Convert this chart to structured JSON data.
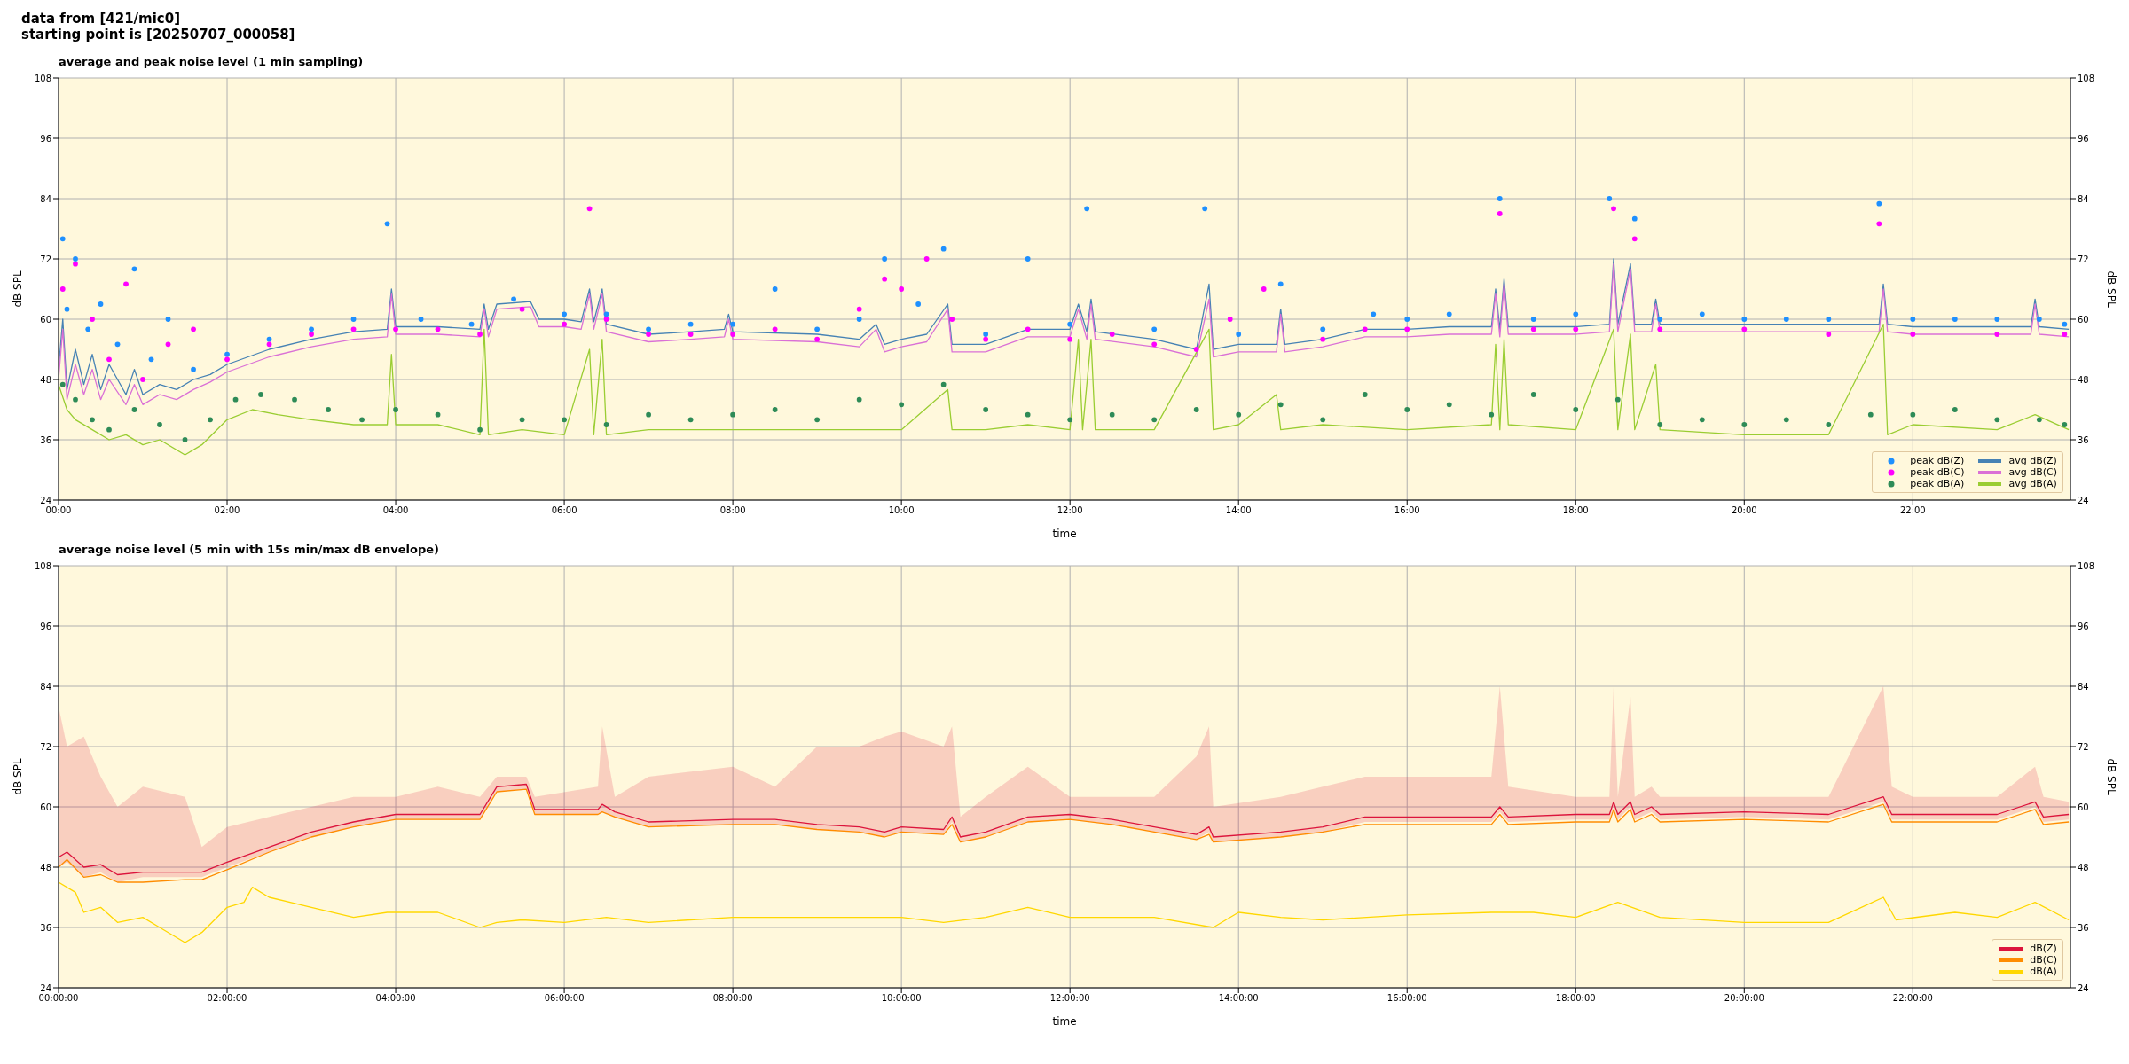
{
  "chart_data": [
    {
      "type": "line",
      "title": "average and peak noise level (1 min sampling)",
      "annotations": [
        "data from [421/mic0]",
        "starting point is [20250707_000058]"
      ],
      "xlabel": "time",
      "ylabel": "dB SPL",
      "y2label": "dB SPL",
      "xlim": [
        0,
        23.87
      ],
      "ylim": [
        24,
        108
      ],
      "y2lim": [
        24,
        108
      ],
      "xticks": [
        {
          "value": 0,
          "label": "00:00"
        },
        {
          "value": 2,
          "label": "02:00"
        },
        {
          "value": 4,
          "label": "04:00"
        },
        {
          "value": 6,
          "label": "06:00"
        },
        {
          "value": 8,
          "label": "08:00"
        },
        {
          "value": 10,
          "label": "10:00"
        },
        {
          "value": 12,
          "label": "12:00"
        },
        {
          "value": 14,
          "label": "14:00"
        },
        {
          "value": 16,
          "label": "16:00"
        },
        {
          "value": 18,
          "label": "18:00"
        },
        {
          "value": 20,
          "label": "20:00"
        },
        {
          "value": 22,
          "label": "22:00"
        }
      ],
      "yticks": [
        24,
        36,
        48,
        60,
        72,
        84,
        96,
        108
      ],
      "y2ticks": [
        24,
        36,
        48,
        60,
        72,
        84,
        96,
        108
      ],
      "grid": true,
      "legend": "bottom right",
      "line_style": "solid",
      "series": [
        {
          "name": "peak dB(Z)",
          "type": "scatter",
          "marker": "circle",
          "color": "#1e90ff",
          "x": [
            0.05,
            0.1,
            0.2,
            0.35,
            0.5,
            0.7,
            0.9,
            1.1,
            1.3,
            1.6,
            2.0,
            2.5,
            3.0,
            3.5,
            3.9,
            4.3,
            4.9,
            5.4,
            6.0,
            6.5,
            7.0,
            7.5,
            8.0,
            8.5,
            9.0,
            9.5,
            9.8,
            10.2,
            10.5,
            11.0,
            11.5,
            12.0,
            12.2,
            13.0,
            13.6,
            14.0,
            14.5,
            15.0,
            15.6,
            16.0,
            16.5,
            17.1,
            17.5,
            18.0,
            18.4,
            18.7,
            19.0,
            19.5,
            20.0,
            20.5,
            21.0,
            21.6,
            22.0,
            22.5,
            23.0,
            23.5,
            23.8
          ],
          "values": [
            76,
            62,
            72,
            58,
            63,
            55,
            70,
            52,
            60,
            50,
            53,
            56,
            58,
            60,
            79,
            60,
            59,
            64,
            61,
            61,
            58,
            59,
            59,
            66,
            58,
            60,
            72,
            63,
            74,
            57,
            72,
            59,
            82,
            58,
            82,
            57,
            67,
            58,
            61,
            60,
            61,
            84,
            60,
            61,
            84,
            80,
            60,
            61,
            60,
            60,
            60,
            83,
            60,
            60,
            60,
            60,
            59
          ]
        },
        {
          "name": "peak dB(C)",
          "type": "scatter",
          "marker": "circle",
          "color": "#ff00ff",
          "x": [
            0.05,
            0.2,
            0.4,
            0.6,
            0.8,
            1.0,
            1.3,
            1.6,
            2.0,
            2.5,
            3.0,
            3.5,
            4.0,
            4.5,
            5.0,
            5.5,
            6.0,
            6.3,
            6.5,
            7.0,
            7.5,
            8.0,
            8.5,
            9.0,
            9.5,
            9.8,
            10.0,
            10.3,
            10.6,
            11.0,
            11.5,
            12.0,
            12.5,
            13.0,
            13.5,
            13.9,
            14.3,
            15.0,
            15.5,
            16.0,
            17.1,
            17.5,
            18.0,
            18.45,
            18.7,
            19.0,
            20.0,
            21.0,
            21.6,
            22.0,
            23.0,
            23.8
          ],
          "values": [
            66,
            71,
            60,
            52,
            67,
            48,
            55,
            58,
            52,
            55,
            57,
            58,
            58,
            58,
            57,
            62,
            59,
            82,
            60,
            57,
            57,
            57,
            58,
            56,
            62,
            68,
            66,
            72,
            60,
            56,
            58,
            56,
            57,
            55,
            54,
            60,
            66,
            56,
            58,
            58,
            81,
            58,
            58,
            82,
            76,
            58,
            58,
            57,
            79,
            57,
            57,
            57
          ]
        },
        {
          "name": "peak dB(A)",
          "type": "scatter",
          "marker": "circle",
          "color": "#2e8b57",
          "x": [
            0.05,
            0.2,
            0.4,
            0.6,
            0.9,
            1.2,
            1.5,
            1.8,
            2.1,
            2.4,
            2.8,
            3.2,
            3.6,
            4.0,
            4.5,
            5.0,
            5.5,
            6.0,
            6.5,
            7.0,
            7.5,
            8.0,
            8.5,
            9.0,
            9.5,
            10.0,
            10.5,
            11.0,
            11.5,
            12.0,
            12.5,
            13.0,
            13.5,
            14.0,
            14.5,
            15.0,
            15.5,
            16.0,
            16.5,
            17.0,
            17.5,
            18.0,
            18.5,
            19.0,
            19.5,
            20.0,
            20.5,
            21.0,
            21.5,
            22.0,
            22.5,
            23.0,
            23.5,
            23.8
          ],
          "values": [
            47,
            44,
            40,
            38,
            42,
            39,
            36,
            40,
            44,
            45,
            44,
            42,
            40,
            42,
            41,
            38,
            40,
            40,
            39,
            41,
            40,
            41,
            42,
            40,
            44,
            43,
            47,
            42,
            41,
            40,
            41,
            40,
            42,
            41,
            43,
            40,
            45,
            42,
            43,
            41,
            45,
            42,
            44,
            39,
            40,
            39,
            40,
            39,
            41,
            41,
            42,
            40,
            40,
            39
          ]
        },
        {
          "name": "avg dB(Z)",
          "type": "line",
          "marker": "none",
          "color": "#4682b4",
          "x": [
            0,
            0.05,
            0.1,
            0.2,
            0.3,
            0.4,
            0.5,
            0.6,
            0.8,
            0.9,
            1.0,
            1.2,
            1.4,
            1.6,
            1.8,
            2.0,
            2.5,
            3.0,
            3.5,
            3.9,
            3.95,
            4.0,
            4.5,
            5.0,
            5.05,
            5.1,
            5.2,
            5.6,
            5.7,
            6.0,
            6.2,
            6.3,
            6.35,
            6.45,
            6.5,
            7.0,
            7.5,
            7.9,
            7.95,
            8.0,
            9.0,
            9.5,
            9.7,
            9.8,
            10.0,
            10.3,
            10.55,
            10.6,
            11.0,
            11.5,
            12.0,
            12.1,
            12.2,
            12.25,
            12.3,
            13.0,
            13.5,
            13.65,
            13.7,
            14.0,
            14.45,
            14.5,
            14.55,
            15.0,
            15.5,
            16.0,
            16.5,
            17.0,
            17.05,
            17.1,
            17.15,
            17.2,
            18.0,
            18.4,
            18.45,
            18.5,
            18.65,
            18.7,
            18.9,
            18.95,
            19.0,
            20.0,
            21.0,
            21.6,
            21.65,
            21.7,
            22.0,
            23.0,
            23.4,
            23.45,
            23.5,
            23.85
          ],
          "values": [
            50,
            60,
            46,
            54,
            47,
            53,
            46,
            51,
            45,
            50,
            45,
            47,
            46,
            48,
            49,
            51,
            54,
            56,
            57.5,
            58,
            66,
            58.5,
            58.5,
            58,
            63,
            58,
            63,
            63.5,
            60,
            60,
            59.5,
            66,
            59.5,
            66,
            59,
            57,
            57.5,
            58,
            61,
            57.5,
            57,
            56,
            59,
            55,
            56,
            57,
            63,
            55,
            55,
            58,
            58,
            63,
            57.5,
            64,
            57.5,
            56,
            54,
            67,
            54,
            55,
            55,
            62,
            55,
            56,
            58,
            58,
            58.5,
            58.5,
            66,
            58,
            68,
            58.5,
            58.5,
            59,
            72,
            59,
            71,
            59,
            59,
            64,
            59,
            59,
            59,
            59,
            67,
            59,
            58.5,
            58.5,
            58.5,
            64,
            58.5,
            58
          ]
        },
        {
          "name": "avg dB(C)",
          "type": "line",
          "marker": "none",
          "color": "#da70d6",
          "x": [
            0,
            0.05,
            0.1,
            0.2,
            0.3,
            0.4,
            0.5,
            0.6,
            0.8,
            0.9,
            1.0,
            1.2,
            1.4,
            1.6,
            1.8,
            2.0,
            2.5,
            3.0,
            3.5,
            3.9,
            3.95,
            4.0,
            4.5,
            5.0,
            5.05,
            5.1,
            5.2,
            5.6,
            5.7,
            6.0,
            6.2,
            6.3,
            6.35,
            6.45,
            6.5,
            7.0,
            7.5,
            7.9,
            7.95,
            8.0,
            9.0,
            9.5,
            9.7,
            9.8,
            10.0,
            10.3,
            10.55,
            10.6,
            11.0,
            11.5,
            12.0,
            12.1,
            12.2,
            12.25,
            12.3,
            13.0,
            13.5,
            13.65,
            13.7,
            14.0,
            14.45,
            14.5,
            14.55,
            15.0,
            15.5,
            16.0,
            16.5,
            17.0,
            17.05,
            17.1,
            17.15,
            17.2,
            18.0,
            18.4,
            18.45,
            18.5,
            18.65,
            18.7,
            18.9,
            18.95,
            19.0,
            20.0,
            21.0,
            21.6,
            21.65,
            21.7,
            22.0,
            23.0,
            23.4,
            23.45,
            23.5,
            23.85
          ],
          "values": [
            48,
            58,
            44,
            51,
            45,
            50,
            44,
            48,
            43,
            47,
            43,
            45,
            44,
            46,
            47.5,
            49.5,
            52.5,
            54.5,
            56,
            56.5,
            65,
            57,
            57,
            56.5,
            62,
            56.5,
            62,
            62.5,
            58.5,
            58.5,
            58,
            65,
            58,
            65,
            57.5,
            55.5,
            56,
            56.5,
            60,
            56,
            55.5,
            54.5,
            58,
            53.5,
            54.5,
            55.5,
            62,
            53.5,
            53.5,
            56.5,
            56.5,
            62,
            56,
            63,
            56,
            54.5,
            52.5,
            64,
            52.5,
            53.5,
            53.5,
            61,
            53.5,
            54.5,
            56.5,
            56.5,
            57,
            57,
            65,
            56.5,
            67,
            57,
            57,
            57.5,
            71,
            57.5,
            70,
            57.5,
            57.5,
            63,
            57.5,
            57.5,
            57.5,
            57.5,
            66,
            57.5,
            57,
            57,
            57,
            63,
            57,
            56.5
          ]
        },
        {
          "name": "avg dB(A)",
          "type": "line",
          "marker": "none",
          "color": "#9acd32",
          "x": [
            0,
            0.1,
            0.2,
            0.4,
            0.6,
            0.8,
            1.0,
            1.2,
            1.5,
            1.7,
            2.0,
            2.3,
            2.6,
            3.0,
            3.5,
            3.9,
            3.95,
            4.0,
            4.5,
            5.0,
            5.05,
            5.1,
            5.5,
            6.0,
            6.3,
            6.35,
            6.45,
            6.5,
            7.0,
            8.0,
            9.0,
            10.0,
            10.55,
            10.6,
            11.0,
            11.5,
            12.0,
            12.1,
            12.15,
            12.25,
            12.3,
            13.0,
            13.65,
            13.7,
            14.0,
            14.45,
            14.5,
            15.0,
            16.0,
            17.0,
            17.05,
            17.1,
            17.15,
            17.2,
            18.0,
            18.45,
            18.5,
            18.65,
            18.7,
            18.95,
            19.0,
            20.0,
            21.0,
            21.65,
            21.7,
            22.0,
            23.0,
            23.45,
            23.85
          ],
          "values": [
            47,
            42,
            40,
            38,
            36,
            37,
            35,
            36,
            33,
            35,
            40,
            42,
            41,
            40,
            39,
            39,
            53,
            39,
            39,
            37,
            58,
            37,
            38,
            37,
            54,
            37,
            56,
            37,
            38,
            38,
            38,
            38,
            46,
            38,
            38,
            39,
            38,
            56,
            38,
            56,
            38,
            38,
            58,
            38,
            39,
            45,
            38,
            39,
            38,
            39,
            55,
            38,
            56,
            39,
            38,
            58,
            38,
            57,
            38,
            51,
            38,
            37,
            37,
            59,
            37,
            39,
            38,
            41,
            38
          ]
        }
      ]
    },
    {
      "type": "line",
      "title": "average noise level (5 min with 15s min/max dB envelope)",
      "xlabel": "time",
      "ylabel": "dB SPL",
      "y2label": "dB SPL",
      "xlim": [
        0,
        23.87
      ],
      "ylim": [
        24,
        108
      ],
      "y2lim": [
        24,
        108
      ],
      "xticks": [
        {
          "value": 0,
          "label": "00:00:00"
        },
        {
          "value": 2,
          "label": "02:00:00"
        },
        {
          "value": 4,
          "label": "04:00:00"
        },
        {
          "value": 6,
          "label": "06:00:00"
        },
        {
          "value": 8,
          "label": "08:00:00"
        },
        {
          "value": 10,
          "label": "10:00:00"
        },
        {
          "value": 12,
          "label": "12:00:00"
        },
        {
          "value": 14,
          "label": "14:00:00"
        },
        {
          "value": 16,
          "label": "16:00:00"
        },
        {
          "value": 18,
          "label": "18:00:00"
        },
        {
          "value": 20,
          "label": "20:00:00"
        },
        {
          "value": 22,
          "label": "22:00:00"
        }
      ],
      "yticks": [
        24,
        36,
        48,
        60,
        72,
        84,
        96,
        108
      ],
      "y2ticks": [
        24,
        36,
        48,
        60,
        72,
        84,
        96,
        108
      ],
      "grid": true,
      "legend": "bottom right",
      "line_style": "solid",
      "marker": "none",
      "series": [
        {
          "name": "dB(Z)",
          "color": "#dc143c",
          "x": [
            0,
            0.1,
            0.3,
            0.5,
            0.7,
            1.0,
            1.5,
            1.7,
            2.0,
            2.5,
            3.0,
            3.5,
            4.0,
            4.5,
            5.0,
            5.2,
            5.55,
            5.65,
            6.4,
            6.45,
            6.6,
            7.0,
            8.0,
            8.5,
            9.0,
            9.5,
            9.8,
            10.0,
            10.5,
            10.6,
            10.7,
            11.0,
            11.5,
            12.0,
            12.5,
            13.0,
            13.5,
            13.65,
            13.7,
            14.5,
            15.0,
            15.5,
            16.0,
            17.0,
            17.1,
            17.2,
            18.0,
            18.4,
            18.45,
            18.5,
            18.65,
            18.7,
            18.9,
            19.0,
            20.0,
            21.0,
            21.65,
            21.75,
            22.0,
            23.0,
            23.45,
            23.55,
            23.85
          ],
          "values": [
            50,
            51,
            48,
            48.5,
            46.5,
            47,
            47,
            47,
            49,
            52,
            55,
            57,
            58.5,
            58.5,
            58.5,
            64,
            64.5,
            59.5,
            59.5,
            60.5,
            59,
            57,
            57.5,
            57.5,
            56.5,
            56,
            55,
            56,
            55.5,
            58,
            54,
            55,
            58,
            58.5,
            57.5,
            56,
            54.5,
            56,
            54,
            55,
            56,
            58,
            58,
            58,
            60,
            58,
            58.5,
            58.5,
            61,
            58.5,
            61,
            58.5,
            60,
            58.5,
            59,
            58.5,
            62,
            58.5,
            58.5,
            58.5,
            61,
            58,
            58.5
          ],
          "lower": [
            48,
            49,
            46,
            47,
            45,
            46,
            46,
            46,
            48,
            51,
            54,
            56,
            57.5,
            57.5,
            57.5,
            63,
            63.5,
            58.5,
            58.5,
            59,
            58,
            56,
            56.5,
            56.5,
            55.5,
            55,
            54,
            55,
            54.5,
            57,
            53,
            54,
            57,
            57.5,
            56.5,
            55,
            53.5,
            55,
            53,
            54,
            55,
            57,
            57,
            57,
            59,
            57,
            57.5,
            57.5,
            60,
            57.5,
            60,
            57.5,
            59,
            57.5,
            58,
            57.5,
            61,
            57.5,
            57.5,
            57.5,
            60,
            57,
            57.5
          ],
          "upper": [
            80,
            72,
            74,
            66,
            60,
            64,
            62,
            52,
            56,
            58,
            60,
            62,
            62,
            64,
            62,
            66,
            66,
            62,
            64,
            76,
            62,
            66,
            68,
            64,
            72,
            72,
            74,
            75,
            72,
            76,
            58,
            62,
            68,
            62,
            62,
            62,
            70,
            76,
            60,
            62,
            64,
            66,
            66,
            66,
            84,
            64,
            62,
            62,
            84,
            62,
            82,
            62,
            64,
            62,
            62,
            62,
            84,
            64,
            62,
            62,
            68,
            62,
            61
          ]
        },
        {
          "name": "dB(C)",
          "color": "#ff8c00",
          "x": [
            0,
            0.1,
            0.3,
            0.5,
            0.7,
            1.0,
            1.5,
            1.7,
            2.0,
            2.5,
            3.0,
            3.5,
            4.0,
            4.5,
            5.0,
            5.2,
            5.55,
            5.65,
            6.4,
            6.45,
            6.6,
            7.0,
            8.0,
            8.5,
            9.0,
            9.5,
            9.8,
            10.0,
            10.5,
            10.6,
            10.7,
            11.0,
            11.5,
            12.0,
            12.5,
            13.0,
            13.5,
            13.65,
            13.7,
            14.5,
            15.0,
            15.5,
            16.0,
            17.0,
            17.1,
            17.2,
            18.0,
            18.4,
            18.45,
            18.5,
            18.65,
            18.7,
            18.9,
            19.0,
            20.0,
            21.0,
            21.65,
            21.75,
            22.0,
            23.0,
            23.45,
            23.55,
            23.85
          ],
          "values": [
            48,
            49.5,
            46,
            46.5,
            45,
            45,
            45.5,
            45.5,
            47.5,
            51,
            54,
            56,
            57.5,
            57.5,
            57.5,
            63,
            63.5,
            58.5,
            58.5,
            59,
            58,
            56,
            56.5,
            56.5,
            55.5,
            55,
            54,
            55,
            54.5,
            56.5,
            53,
            54,
            57,
            57.5,
            56.5,
            55,
            53.5,
            54.5,
            53,
            54,
            55,
            56.5,
            56.5,
            56.5,
            58.5,
            56.5,
            57,
            57,
            59.5,
            57,
            59.5,
            57,
            58.5,
            57,
            57.5,
            57,
            60.5,
            57,
            57,
            57,
            59.5,
            56.5,
            57
          ]
        },
        {
          "name": "dB(A)",
          "color": "#ffd700",
          "x": [
            0,
            0.2,
            0.3,
            0.5,
            0.7,
            1.0,
            1.2,
            1.5,
            1.7,
            2.0,
            2.2,
            2.3,
            2.5,
            3.0,
            3.5,
            3.9,
            4.5,
            5.0,
            5.2,
            5.5,
            6.0,
            6.5,
            7.0,
            8.0,
            9.0,
            10.0,
            10.5,
            11.0,
            11.5,
            12.0,
            13.0,
            13.7,
            14.0,
            14.5,
            15.0,
            16.0,
            17.0,
            17.5,
            18.0,
            18.5,
            19.0,
            20.0,
            21.0,
            21.65,
            21.8,
            22.5,
            23.0,
            23.45,
            23.85
          ],
          "values": [
            45,
            43,
            39,
            40,
            37,
            38,
            36,
            33,
            35,
            40,
            41,
            44,
            42,
            40,
            38,
            39,
            39,
            36,
            37,
            37.5,
            37,
            38,
            37,
            38,
            38,
            38,
            37,
            38,
            40,
            38,
            38,
            36,
            39,
            38,
            37.5,
            38.5,
            39,
            39,
            38,
            41,
            38,
            37,
            37,
            42,
            37.5,
            39,
            38,
            41,
            37.5
          ]
        }
      ]
    }
  ]
}
